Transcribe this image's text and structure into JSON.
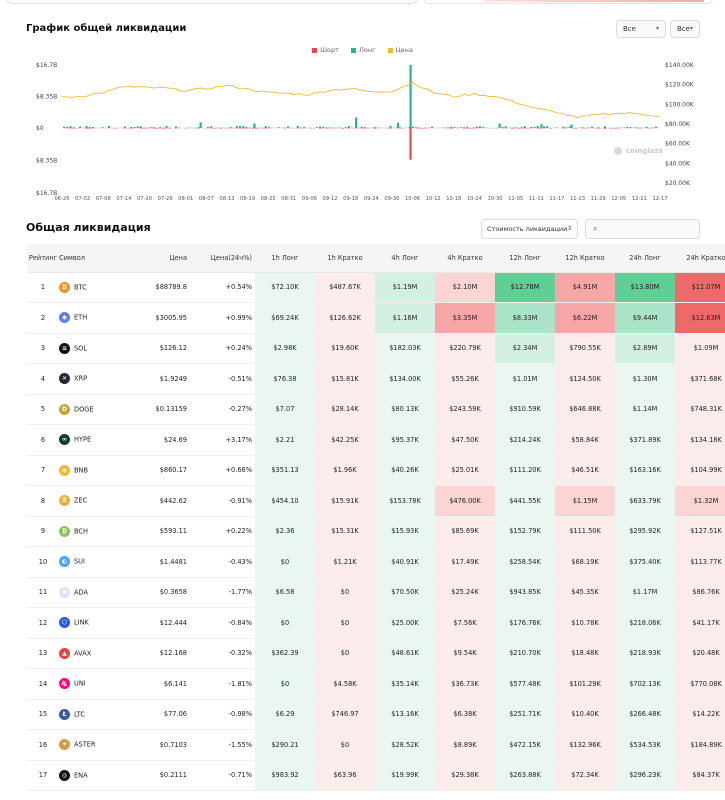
{
  "colors": {
    "short": "#e5484d",
    "long": "#2bb091",
    "price": "#f2b930",
    "positive_change": "#15a37a",
    "negative_change": "#e5484d"
  },
  "chart_section": {
    "title": "График общей ликвидации",
    "range_select": "Все",
    "asset_select": "Все",
    "legend": {
      "short": "Шорт",
      "long": "Лонг",
      "price": "Цена"
    },
    "watermark": "coinglass"
  },
  "chart_data": {
    "type": "bar",
    "series": [
      {
        "name": "Шорт",
        "kind": "bar"
      },
      {
        "name": "Лонг",
        "kind": "bar"
      },
      {
        "name": "Цена",
        "kind": "line",
        "axis": "right"
      }
    ],
    "x": [
      "06-26",
      "07-02",
      "07-08",
      "07-14",
      "07-20",
      "07-26",
      "08-01",
      "08-07",
      "08-13",
      "08-19",
      "08-25",
      "08-31",
      "09-06",
      "09-12",
      "09-18",
      "09-24",
      "09-30",
      "10-06",
      "10-12",
      "10-18",
      "10-24",
      "10-30",
      "11-05",
      "11-11",
      "11-17",
      "11-23",
      "11-29",
      "12-05",
      "12-11",
      "12-17"
    ],
    "price_line": [
      107000,
      108500,
      112000,
      118000,
      117000,
      116500,
      114000,
      116000,
      119000,
      115500,
      112000,
      111000,
      110000,
      114500,
      116000,
      112500,
      113500,
      122000,
      112000,
      108000,
      110500,
      108000,
      102000,
      95500,
      92000,
      86000,
      90000,
      91000,
      90500,
      87800
    ],
    "spike_long": {
      "date": "10-11",
      "value": 16.7
    },
    "spike_short": {
      "date": "10-11",
      "value": -2.1
    },
    "y_left_ticks": [
      "$16.7B",
      "$8.35B",
      "$0",
      "$8.35B",
      "$16.7B"
    ],
    "y_left_unit": "B",
    "y_right_ticks": [
      "$140.00K",
      "$120.00K",
      "$100.00K",
      "$80.00K",
      "$60.00K",
      "$40.00K",
      "$20.00K"
    ],
    "ylim_left": [
      -16.7,
      16.7
    ],
    "ylim_right": [
      20000,
      140000
    ],
    "legend_position": "top-center"
  },
  "table_section": {
    "title": "Общая ликвидация",
    "value_select": "Стоимость ликвидации",
    "search_placeholder": "",
    "headers": [
      "Рейтинг",
      "Символ",
      "Цена",
      "Цена(24ч%)",
      "1h Лонг",
      "1h Кратко",
      "4h Лонг",
      "4h Кратко",
      "12h Лонг",
      "12h Кратко",
      "24h Лонг",
      "24h Кратко"
    ],
    "rows": [
      {
        "rank": "1",
        "symbol": "BTC",
        "icon": "bitcoin-icon",
        "icolor": "#f7931a",
        "glyph": "₿",
        "price": "$88789.8",
        "change": "+0.54%",
        "dir": "pos",
        "v": [
          "$72.10K",
          "$487.67K",
          "$1.19M",
          "$2.10M",
          "$12.78M",
          "$4.91M",
          "$13.80M",
          "$11.07M"
        ],
        "s": [
          1,
          1,
          2,
          2,
          4,
          3,
          4,
          4
        ]
      },
      {
        "rank": "2",
        "symbol": "ETH",
        "icon": "ethereum-icon",
        "icolor": "#627eea",
        "glyph": "◆",
        "price": "$3005.95",
        "change": "+0.99%",
        "dir": "pos",
        "v": [
          "$69.24K",
          "$126.62K",
          "$1.16M",
          "$3.35M",
          "$8.33M",
          "$6.22M",
          "$9.44M",
          "$12.63M"
        ],
        "s": [
          1,
          1,
          2,
          3,
          3,
          3,
          3,
          4
        ]
      },
      {
        "rank": "3",
        "symbol": "SOL",
        "icon": "solana-icon",
        "icolor": "#111111",
        "glyph": "≡",
        "price": "$126.12",
        "change": "+0.24%",
        "dir": "pos",
        "v": [
          "$2.98K",
          "$19.60K",
          "$182.03K",
          "$220.79K",
          "$2.34M",
          "$790.55K",
          "$2.89M",
          "$1.09M"
        ],
        "s": [
          1,
          1,
          1,
          1,
          2,
          1,
          2,
          1
        ]
      },
      {
        "rank": "4",
        "symbol": "XRP",
        "icon": "xrp-icon",
        "icolor": "#23292f",
        "glyph": "✕",
        "price": "$1.9249",
        "change": "-0.51%",
        "dir": "neg",
        "v": [
          "$76.38",
          "$15.81K",
          "$134.00K",
          "$55.26K",
          "$1.01M",
          "$124.50K",
          "$1.30M",
          "$371.68K"
        ],
        "s": [
          1,
          1,
          1,
          1,
          1,
          1,
          1,
          1
        ]
      },
      {
        "rank": "5",
        "symbol": "DOGE",
        "icon": "doge-icon",
        "icolor": "#c2a633",
        "glyph": "D",
        "price": "$0.13159",
        "change": "-0.27%",
        "dir": "neg",
        "v": [
          "$7.07",
          "$28.14K",
          "$80.13K",
          "$243.59K",
          "$910.59K",
          "$646.88K",
          "$1.14M",
          "$748.31K"
        ],
        "s": [
          1,
          1,
          1,
          1,
          1,
          1,
          1,
          1
        ]
      },
      {
        "rank": "6",
        "symbol": "HYPE",
        "icon": "hyperliquid-icon",
        "icolor": "#0f3d33",
        "glyph": "∞",
        "price": "$24.69",
        "change": "+3.17%",
        "dir": "pos",
        "v": [
          "$2.21",
          "$42.25K",
          "$95.37K",
          "$47.50K",
          "$214.24K",
          "$58.84K",
          "$371.89K",
          "$134.18K"
        ],
        "s": [
          1,
          1,
          1,
          1,
          1,
          1,
          1,
          1
        ]
      },
      {
        "rank": "7",
        "symbol": "BNB",
        "icon": "bnb-icon",
        "icolor": "#f3ba2f",
        "glyph": "◈",
        "price": "$860.17",
        "change": "+0.66%",
        "dir": "pos",
        "v": [
          "$351.13",
          "$1.96K",
          "$40.26K",
          "$25.01K",
          "$111.20K",
          "$46.51K",
          "$163.16K",
          "$104.99K"
        ],
        "s": [
          1,
          1,
          1,
          1,
          1,
          1,
          1,
          1
        ]
      },
      {
        "rank": "8",
        "symbol": "ZEC",
        "icon": "zcash-icon",
        "icolor": "#e8b13c",
        "glyph": "Z",
        "price": "$442.62",
        "change": "-0.91%",
        "dir": "neg",
        "v": [
          "$454.10",
          "$15.91K",
          "$153.78K",
          "$476.00K",
          "$441.55K",
          "$1.15M",
          "$633.79K",
          "$1.32M"
        ],
        "s": [
          1,
          1,
          1,
          2,
          1,
          2,
          1,
          2
        ]
      },
      {
        "rank": "9",
        "symbol": "BCH",
        "icon": "bitcoin-cash-icon",
        "icolor": "#8dc351",
        "glyph": "₿",
        "price": "$593.11",
        "change": "+0.22%",
        "dir": "pos",
        "v": [
          "$2.36",
          "$15.31K",
          "$15.93K",
          "$85.69K",
          "$152.79K",
          "$111.50K",
          "$295.92K",
          "$127.51K"
        ],
        "s": [
          1,
          1,
          1,
          1,
          1,
          1,
          1,
          1
        ]
      },
      {
        "rank": "10",
        "symbol": "SUI",
        "icon": "sui-icon",
        "icolor": "#4da2ff",
        "glyph": "◐",
        "price": "$1.4481",
        "change": "-0.43%",
        "dir": "neg",
        "v": [
          "$0",
          "$1.21K",
          "$40.91K",
          "$17.49K",
          "$258.54K",
          "$68.19K",
          "$375.40K",
          "$113.77K"
        ],
        "s": [
          1,
          1,
          1,
          1,
          1,
          1,
          1,
          1
        ]
      },
      {
        "rank": "11",
        "symbol": "ADA",
        "icon": "cardano-icon",
        "icolor": "#d6e4ff",
        "glyph": "✺",
        "price": "$0.3658",
        "change": "-1.77%",
        "dir": "neg",
        "v": [
          "$6.58",
          "$0",
          "$70.50K",
          "$25.24K",
          "$943.85K",
          "$45.35K",
          "$1.17M",
          "$86.76K"
        ],
        "s": [
          1,
          1,
          1,
          1,
          1,
          1,
          1,
          1
        ]
      },
      {
        "rank": "12",
        "symbol": "LINK",
        "icon": "chainlink-icon",
        "icolor": "#2a5ada",
        "glyph": "⬡",
        "price": "$12.444",
        "change": "-0.84%",
        "dir": "neg",
        "v": [
          "$0",
          "$0",
          "$25.00K",
          "$7.56K",
          "$176.76K",
          "$10.78K",
          "$218.06K",
          "$41.17K"
        ],
        "s": [
          1,
          1,
          1,
          1,
          1,
          1,
          1,
          1
        ]
      },
      {
        "rank": "13",
        "symbol": "AVAX",
        "icon": "avalanche-icon",
        "icolor": "#e84142",
        "glyph": "▲",
        "price": "$12.168",
        "change": "-0.32%",
        "dir": "neg",
        "v": [
          "$362.39",
          "$0",
          "$48.61K",
          "$9.54K",
          "$210.70K",
          "$18.48K",
          "$218.93K",
          "$20.48K"
        ],
        "s": [
          1,
          1,
          1,
          1,
          1,
          1,
          1,
          1
        ]
      },
      {
        "rank": "14",
        "symbol": "UNI",
        "icon": "uniswap-icon",
        "icolor": "#ff007a",
        "glyph": "🦄",
        "price": "$6.141",
        "change": "-1.81%",
        "dir": "neg",
        "v": [
          "$0",
          "$4.58K",
          "$35.14K",
          "$36.73K",
          "$577.48K",
          "$101.29K",
          "$702.13K",
          "$770.08K"
        ],
        "s": [
          1,
          1,
          1,
          1,
          1,
          1,
          1,
          1
        ]
      },
      {
        "rank": "15",
        "symbol": "LTC",
        "icon": "litecoin-icon",
        "icolor": "#345d9d",
        "glyph": "Ł",
        "price": "$77.06",
        "change": "-0.98%",
        "dir": "neg",
        "v": [
          "$6.29",
          "$746.97",
          "$13.16K",
          "$6.38K",
          "$251.71K",
          "$10.40K",
          "$266.48K",
          "$14.22K"
        ],
        "s": [
          1,
          1,
          1,
          1,
          1,
          1,
          1,
          1
        ]
      },
      {
        "rank": "16",
        "symbol": "ASTER",
        "icon": "aster-icon",
        "icolor": "#d79a4a",
        "glyph": "✦",
        "price": "$0.7103",
        "change": "-1.55%",
        "dir": "neg",
        "v": [
          "$290.21",
          "$0",
          "$28.52K",
          "$8.89K",
          "$472.15K",
          "$132.96K",
          "$534.53K",
          "$184.89K"
        ],
        "s": [
          1,
          1,
          1,
          1,
          1,
          1,
          1,
          1
        ]
      },
      {
        "rank": "17",
        "symbol": "ENA",
        "icon": "ethena-icon",
        "icolor": "#111111",
        "glyph": "◎",
        "price": "$0.2111",
        "change": "-0.71%",
        "dir": "neg",
        "v": [
          "$983.92",
          "$63.96",
          "$19.99K",
          "$29.38K",
          "$263.88K",
          "$72.34K",
          "$296.23K",
          "$84.37K"
        ],
        "s": [
          1,
          1,
          1,
          1,
          1,
          1,
          1,
          1
        ]
      }
    ]
  }
}
